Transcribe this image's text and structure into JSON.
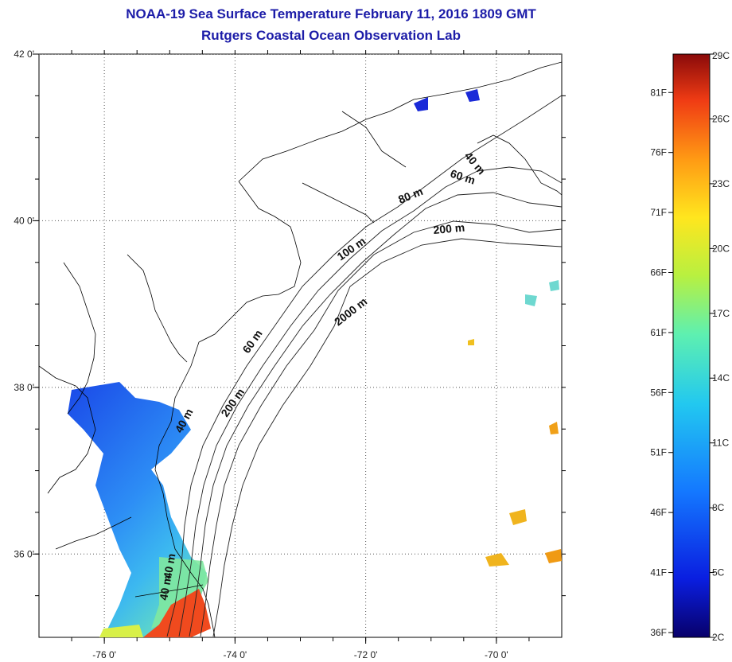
{
  "title": {
    "line1": "NOAA-19 Sea Surface Temperature February 11, 2016 1809 GMT",
    "line2": "Rutgers Coastal Ocean Observation Lab"
  },
  "map": {
    "lon_range": [
      -77,
      -69
    ],
    "lat_range": [
      35,
      42
    ],
    "lon_ticks": [
      {
        "lon": -76,
        "label": "-76 0'"
      },
      {
        "lon": -74,
        "label": "-74 0'"
      },
      {
        "lon": -72,
        "label": "-72 0'"
      },
      {
        "lon": -70,
        "label": "-70 0'"
      }
    ],
    "lat_ticks": [
      {
        "lat": 42,
        "label": "42 0'"
      },
      {
        "lat": 40,
        "label": "40 0'"
      },
      {
        "lat": 38,
        "label": "38 0'"
      },
      {
        "lat": 36,
        "label": "36 0'"
      }
    ],
    "grid": "dotted",
    "colors": {
      "land_outline": "#000000",
      "contour": "#222222",
      "background": "#ffffff"
    },
    "contour_labels": [
      {
        "text": "40 m"
      },
      {
        "text": "60 m"
      },
      {
        "text": "80 m"
      },
      {
        "text": "200 m"
      },
      {
        "text": "100 m"
      },
      {
        "text": "2000 m"
      },
      {
        "text": "60 m"
      },
      {
        "text": "200 m"
      },
      {
        "text": "40 m"
      },
      {
        "text": "40 m"
      },
      {
        "text": "40 m"
      }
    ]
  },
  "colorbar": {
    "celsius_labels": [
      "29C",
      "26C",
      "23C",
      "20C",
      "17C",
      "14C",
      "11C",
      "8C",
      "5C",
      "2C"
    ],
    "fahrenheit_labels": [
      "81F",
      "76F",
      "71F",
      "66F",
      "61F",
      "56F",
      "51F",
      "46F",
      "41F",
      "36F"
    ],
    "celsius_range": [
      2,
      29
    ],
    "colors": [
      "#08006a",
      "#0a1ee0",
      "#1478ff",
      "#22c8f0",
      "#5ef0b0",
      "#b8f040",
      "#ffe61e",
      "#ff9a14",
      "#f03c14",
      "#8a0a0a"
    ]
  }
}
